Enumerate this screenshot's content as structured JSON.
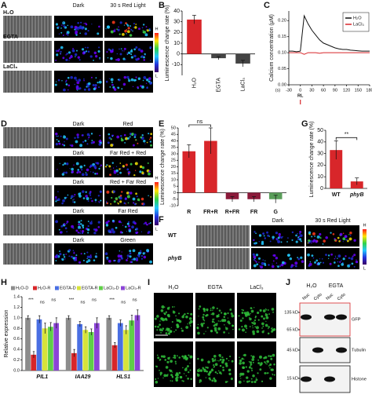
{
  "chart_data": [
    {
      "type": "bar",
      "panel": "B",
      "ylabel": "Luminescence change rate (%)",
      "categories": [
        "H₂O",
        "EGTA",
        "LaCl₃"
      ],
      "values": [
        32,
        -4,
        -9
      ],
      "errors": [
        4,
        1.5,
        3
      ],
      "colors": [
        "#d8262a",
        "#444444",
        "#444444"
      ],
      "ylim": [
        -20,
        40
      ],
      "yticks": [
        -10,
        0,
        10,
        20,
        30,
        40
      ]
    },
    {
      "type": "line",
      "panel": "C",
      "ylabel": "Calcium concentration (μM)",
      "xlabel": "(s)",
      "annotation": "RL",
      "legend": "upper right",
      "x": [
        -30,
        -20,
        -10,
        0,
        10,
        20,
        30,
        40,
        50,
        60,
        70,
        80,
        90,
        100,
        110,
        120,
        130,
        140,
        150,
        160,
        170,
        180
      ],
      "series": [
        {
          "name": "H₂O",
          "color": "#111111",
          "values": [
            0.105,
            0.105,
            0.103,
            0.105,
            0.215,
            0.19,
            0.17,
            0.155,
            0.14,
            0.13,
            0.125,
            0.12,
            0.115,
            0.112,
            0.11,
            0.11,
            0.108,
            0.107,
            0.106,
            0.105,
            0.105,
            0.105
          ]
        },
        {
          "name": "LaCl₃",
          "color": "#d8262a",
          "values": [
            0.1,
            0.1,
            0.1,
            0.1,
            0.095,
            0.1,
            0.1,
            0.1,
            0.098,
            0.1,
            0.1,
            0.1,
            0.1,
            0.1,
            0.1,
            0.1,
            0.1,
            0.1,
            0.1,
            0.1,
            0.1,
            0.1
          ]
        }
      ],
      "xlim": [
        -30,
        180
      ],
      "xticks": [
        -30,
        0,
        30,
        60,
        90,
        120,
        150,
        180
      ],
      "ylim": [
        0,
        0.23
      ],
      "yticks": [
        {
          "value": 0,
          "label": "0.00"
        },
        0.05,
        {
          "value": 0.1,
          "label": "0.10"
        },
        0.15,
        {
          "value": 0.2,
          "label": "0.20"
        }
      ]
    },
    {
      "type": "bar",
      "panel": "E",
      "ylabel": "Luminescence change rate (%)",
      "annotation": "ns",
      "categories": [
        "R",
        "FR+R",
        "R+FR",
        "FR",
        "G"
      ],
      "values": [
        32,
        40,
        -5,
        -5,
        -5
      ],
      "errors": [
        5,
        10,
        2,
        2,
        3
      ],
      "colors": [
        "#d8262a",
        "#d8262a",
        "#8b1a3a",
        "#8b1a3a",
        "#5a9e5a"
      ],
      "ylim": [
        -10,
        50
      ],
      "yticks": [
        -10,
        -5,
        0,
        5,
        10,
        15,
        20,
        25,
        30,
        35,
        40,
        45,
        50
      ]
    },
    {
      "type": "bar",
      "panel": "G",
      "ylabel": "Luminescence change rate (%)",
      "annotation": "**",
      "categories": [
        "WT",
        "phyB"
      ],
      "values": [
        33,
        6
      ],
      "errors": [
        8,
        3
      ],
      "colors": [
        "#d8262a",
        "#d8262a"
      ],
      "ylim": [
        0,
        50
      ],
      "yticks": [
        0,
        10,
        20,
        30,
        40,
        50
      ]
    },
    {
      "type": "grouped_bar",
      "panel": "H",
      "ylabel": "Relative expression",
      "categories": [
        "PIL1",
        "IAA29",
        "HLS1"
      ],
      "series": [
        {
          "name": "H₂O-D",
          "color": "#8c8c8c",
          "values": [
            1,
            1,
            1
          ],
          "errors": [
            0.04,
            0.04,
            0.04
          ]
        },
        {
          "name": "H₂O-R",
          "color": "#d8262a",
          "values": [
            0.3,
            0.33,
            0.48
          ],
          "errors": [
            0.06,
            0.07,
            0.05
          ]
        },
        {
          "name": "EGTA-D",
          "color": "#4a6fe3",
          "values": [
            0.97,
            0.88,
            0.9
          ],
          "errors": [
            0.07,
            0.05,
            0.06
          ]
        },
        {
          "name": "EGTA-R",
          "color": "#d7e33a",
          "values": [
            0.8,
            0.77,
            0.77
          ],
          "errors": [
            0.1,
            0.06,
            0.08
          ]
        },
        {
          "name": "LaCl₃-D",
          "color": "#5fcf47",
          "values": [
            0.83,
            0.73,
            0.95
          ],
          "errors": [
            0.08,
            0.06,
            0.1
          ]
        },
        {
          "name": "LaCl₃-R",
          "color": "#8b45d6",
          "values": [
            0.9,
            0.9,
            1.05
          ],
          "errors": [
            0.1,
            0.1,
            0.1
          ]
        }
      ],
      "significance": [
        [
          "***",
          "ns",
          "ns"
        ],
        [
          "***",
          "ns",
          "ns"
        ],
        [
          "***",
          "ns",
          "ns"
        ]
      ],
      "ylim": [
        0,
        1.4
      ],
      "yticks": [
        {
          "value": 0,
          "label": "0.0"
        },
        0.2,
        0.4,
        0.6,
        0.8,
        {
          "value": 1,
          "label": "1.0"
        },
        1.2,
        1.4
      ]
    }
  ],
  "panels": [
    {
      "letter": "A",
      "columns": [
        "Dark",
        "30 s Red Light"
      ],
      "rows": [
        "H₂O",
        "EGTA",
        "LaCl₃"
      ],
      "scale": [
        "H",
        "L"
      ]
    },
    {
      "letter": "D",
      "rows": [
        [
          "Dark",
          "Red"
        ],
        [
          "Dark",
          "Far Red + Red"
        ],
        [
          "Dark",
          "Red + Far Red"
        ],
        [
          "Dark",
          "Far Red"
        ],
        [
          "Dark",
          "Green"
        ]
      ],
      "scale": [
        "H",
        "L"
      ]
    },
    {
      "letter": "F",
      "columns": [
        "Dark",
        "30 s Red Light"
      ],
      "rows": [
        "WT",
        "phyB"
      ],
      "scale": [
        "H",
        "L"
      ]
    },
    {
      "letter": "I",
      "columns": [
        "H₂O",
        "EGTA",
        "LaCl₃"
      ]
    },
    {
      "letter": "J",
      "groups": [
        "H₂O",
        "EGTA"
      ],
      "fractions": [
        "Nuc",
        "Cyto",
        "Nuc",
        "Cyto"
      ],
      "markers": [
        "135 kD",
        "65 kD",
        "45 kD",
        "15 kD"
      ],
      "blots": [
        "GFP",
        "Tubulin",
        "Histone"
      ]
    }
  ]
}
